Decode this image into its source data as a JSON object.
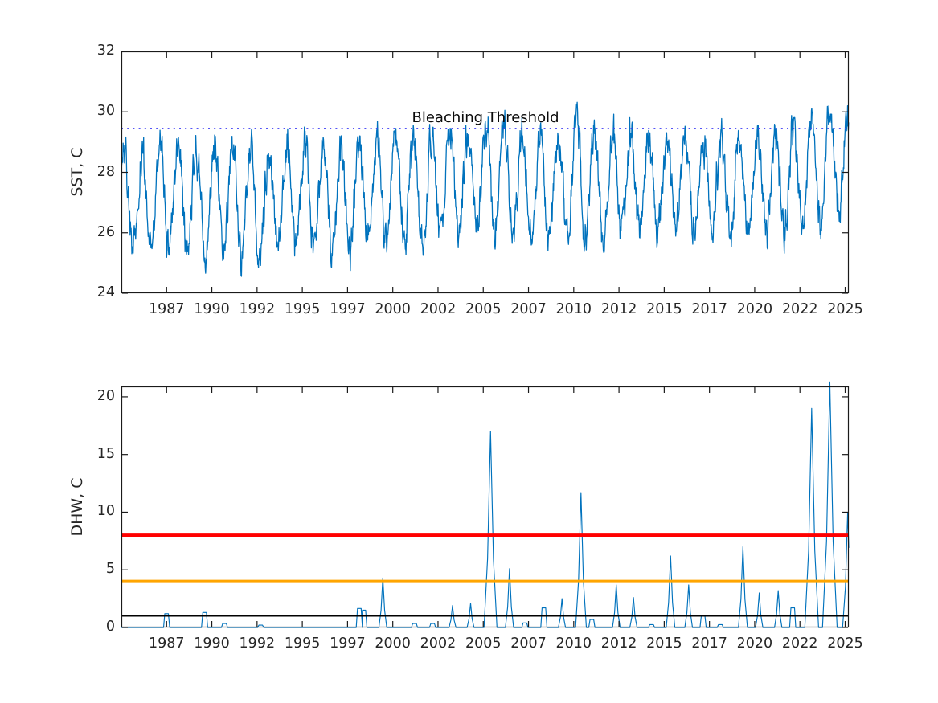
{
  "figure": {
    "background": "#ffffff",
    "axis_color": "#1a1a1a",
    "tick_label_color": "#262626"
  },
  "chart_data": [
    {
      "id": "sst",
      "type": "line",
      "title": "",
      "xlabel": "",
      "ylabel": "SST, C",
      "ylim": [
        24,
        32
      ],
      "yticks": [
        24,
        26,
        28,
        30,
        32
      ],
      "xlim": [
        1985.0,
        2025.2
      ],
      "xtick_years": [
        1987.5,
        1990,
        1992.5,
        1995,
        1997.5,
        2000,
        2002.5,
        2005,
        2007.5,
        2010,
        2012.5,
        2015,
        2017.5,
        2020,
        2022.5,
        2025
      ],
      "xtick_labels": [
        "1987",
        "1990",
        "1992",
        "1995",
        "1997",
        "2000",
        "2002",
        "2005",
        "2007",
        "2010",
        "2012",
        "2015",
        "2017",
        "2020",
        "2022",
        "2025"
      ],
      "grid": false,
      "line_color": "#0072BD",
      "line_width": 1.3,
      "threshold_line": {
        "label": "Bleaching Threshold",
        "value": 29.45,
        "color": "#3d3df5",
        "style": "dotted"
      },
      "seasonal_envelope": {
        "phase_max": 0.15,
        "phase_min": 0.65,
        "years": [
          1985,
          1986,
          1987,
          1988,
          1989,
          1990,
          1991,
          1992,
          1993,
          1994,
          1995,
          1996,
          1997,
          1998,
          1999,
          2000,
          2001,
          2002,
          2003,
          2004,
          2005,
          2006,
          2007,
          2008,
          2009,
          2010,
          2011,
          2012,
          2013,
          2014,
          2015,
          2016,
          2017,
          2018,
          2019,
          2020,
          2021,
          2022,
          2023,
          2024,
          2025
        ],
        "summer_max": [
          28.9,
          29.1,
          29.4,
          29.1,
          29.0,
          29.4,
          29.1,
          28.9,
          29.2,
          29.3,
          29.2,
          29.1,
          29.2,
          29.6,
          29.5,
          29.7,
          29.3,
          29.4,
          29.5,
          29.4,
          30.2,
          29.7,
          29.5,
          29.4,
          29.6,
          30.4,
          29.4,
          29.7,
          29.5,
          29.3,
          29.6,
          29.5,
          29.4,
          29.4,
          29.7,
          29.6,
          29.5,
          29.7,
          30.4,
          30.6,
          29.9
        ],
        "winter_min": [
          25.3,
          25.2,
          25.3,
          25.1,
          24.95,
          25.2,
          25.0,
          24.9,
          25.3,
          25.3,
          25.3,
          25.4,
          25.2,
          25.4,
          25.4,
          25.5,
          25.5,
          25.6,
          25.9,
          25.8,
          25.9,
          25.7,
          25.6,
          25.6,
          25.7,
          25.6,
          25.7,
          25.9,
          25.9,
          26.0,
          26.0,
          25.9,
          26.1,
          25.9,
          26.0,
          25.9,
          25.9,
          26.0,
          26.2,
          26.5,
          26.5
        ]
      }
    },
    {
      "id": "dhw",
      "type": "line",
      "title": "",
      "xlabel": "",
      "ylabel": "DHW, C",
      "ylim": [
        0,
        20.9
      ],
      "yticks": [
        0,
        5,
        10,
        15,
        20
      ],
      "xlim": [
        1985.0,
        2025.2
      ],
      "xtick_years": [
        1987.5,
        1990,
        1992.5,
        1995,
        1997.5,
        2000,
        2002.5,
        2005,
        2007.5,
        2010,
        2012.5,
        2015,
        2017.5,
        2020,
        2022.5,
        2025
      ],
      "xtick_labels": [
        "1987",
        "1990",
        "1992",
        "1995",
        "1997",
        "2000",
        "2002",
        "2005",
        "2007",
        "2010",
        "2012",
        "2015",
        "2017",
        "2020",
        "2022",
        "2025"
      ],
      "grid": false,
      "line_color": "#0072BD",
      "line_width": 1.15,
      "reference_lines": [
        {
          "value": 8,
          "color": "#ff0000",
          "width": 4
        },
        {
          "value": 4,
          "color": "#ffa500",
          "width": 4
        },
        {
          "value": 1,
          "color": "#000000",
          "width": 1.8
        }
      ],
      "events": [
        [
          1987.5,
          1.2
        ],
        [
          1989.6,
          1.3
        ],
        [
          1990.7,
          0.35
        ],
        [
          1992.7,
          0.2
        ],
        [
          1998.15,
          1.65
        ],
        [
          1998.4,
          1.5
        ],
        [
          1999.45,
          4.3
        ],
        [
          2001.2,
          0.35
        ],
        [
          2002.2,
          0.35
        ],
        [
          2003.3,
          1.9
        ],
        [
          2004.3,
          2.1
        ],
        [
          2005.4,
          17.0
        ],
        [
          2006.45,
          5.1
        ],
        [
          2007.3,
          0.4
        ],
        [
          2008.35,
          1.7
        ],
        [
          2009.35,
          2.5
        ],
        [
          2010.4,
          11.7
        ],
        [
          2011.0,
          0.7
        ],
        [
          2012.35,
          3.7
        ],
        [
          2013.3,
          2.6
        ],
        [
          2014.3,
          0.25
        ],
        [
          2015.35,
          6.2
        ],
        [
          2016.35,
          3.7
        ],
        [
          2017.15,
          1.0
        ],
        [
          2018.1,
          0.25
        ],
        [
          2019.35,
          7.0
        ],
        [
          2020.25,
          3.0
        ],
        [
          2021.3,
          3.2
        ],
        [
          2022.1,
          1.7
        ],
        [
          2023.15,
          19.0
        ],
        [
          2024.15,
          21.3
        ],
        [
          2025.14,
          10.0
        ]
      ]
    }
  ]
}
